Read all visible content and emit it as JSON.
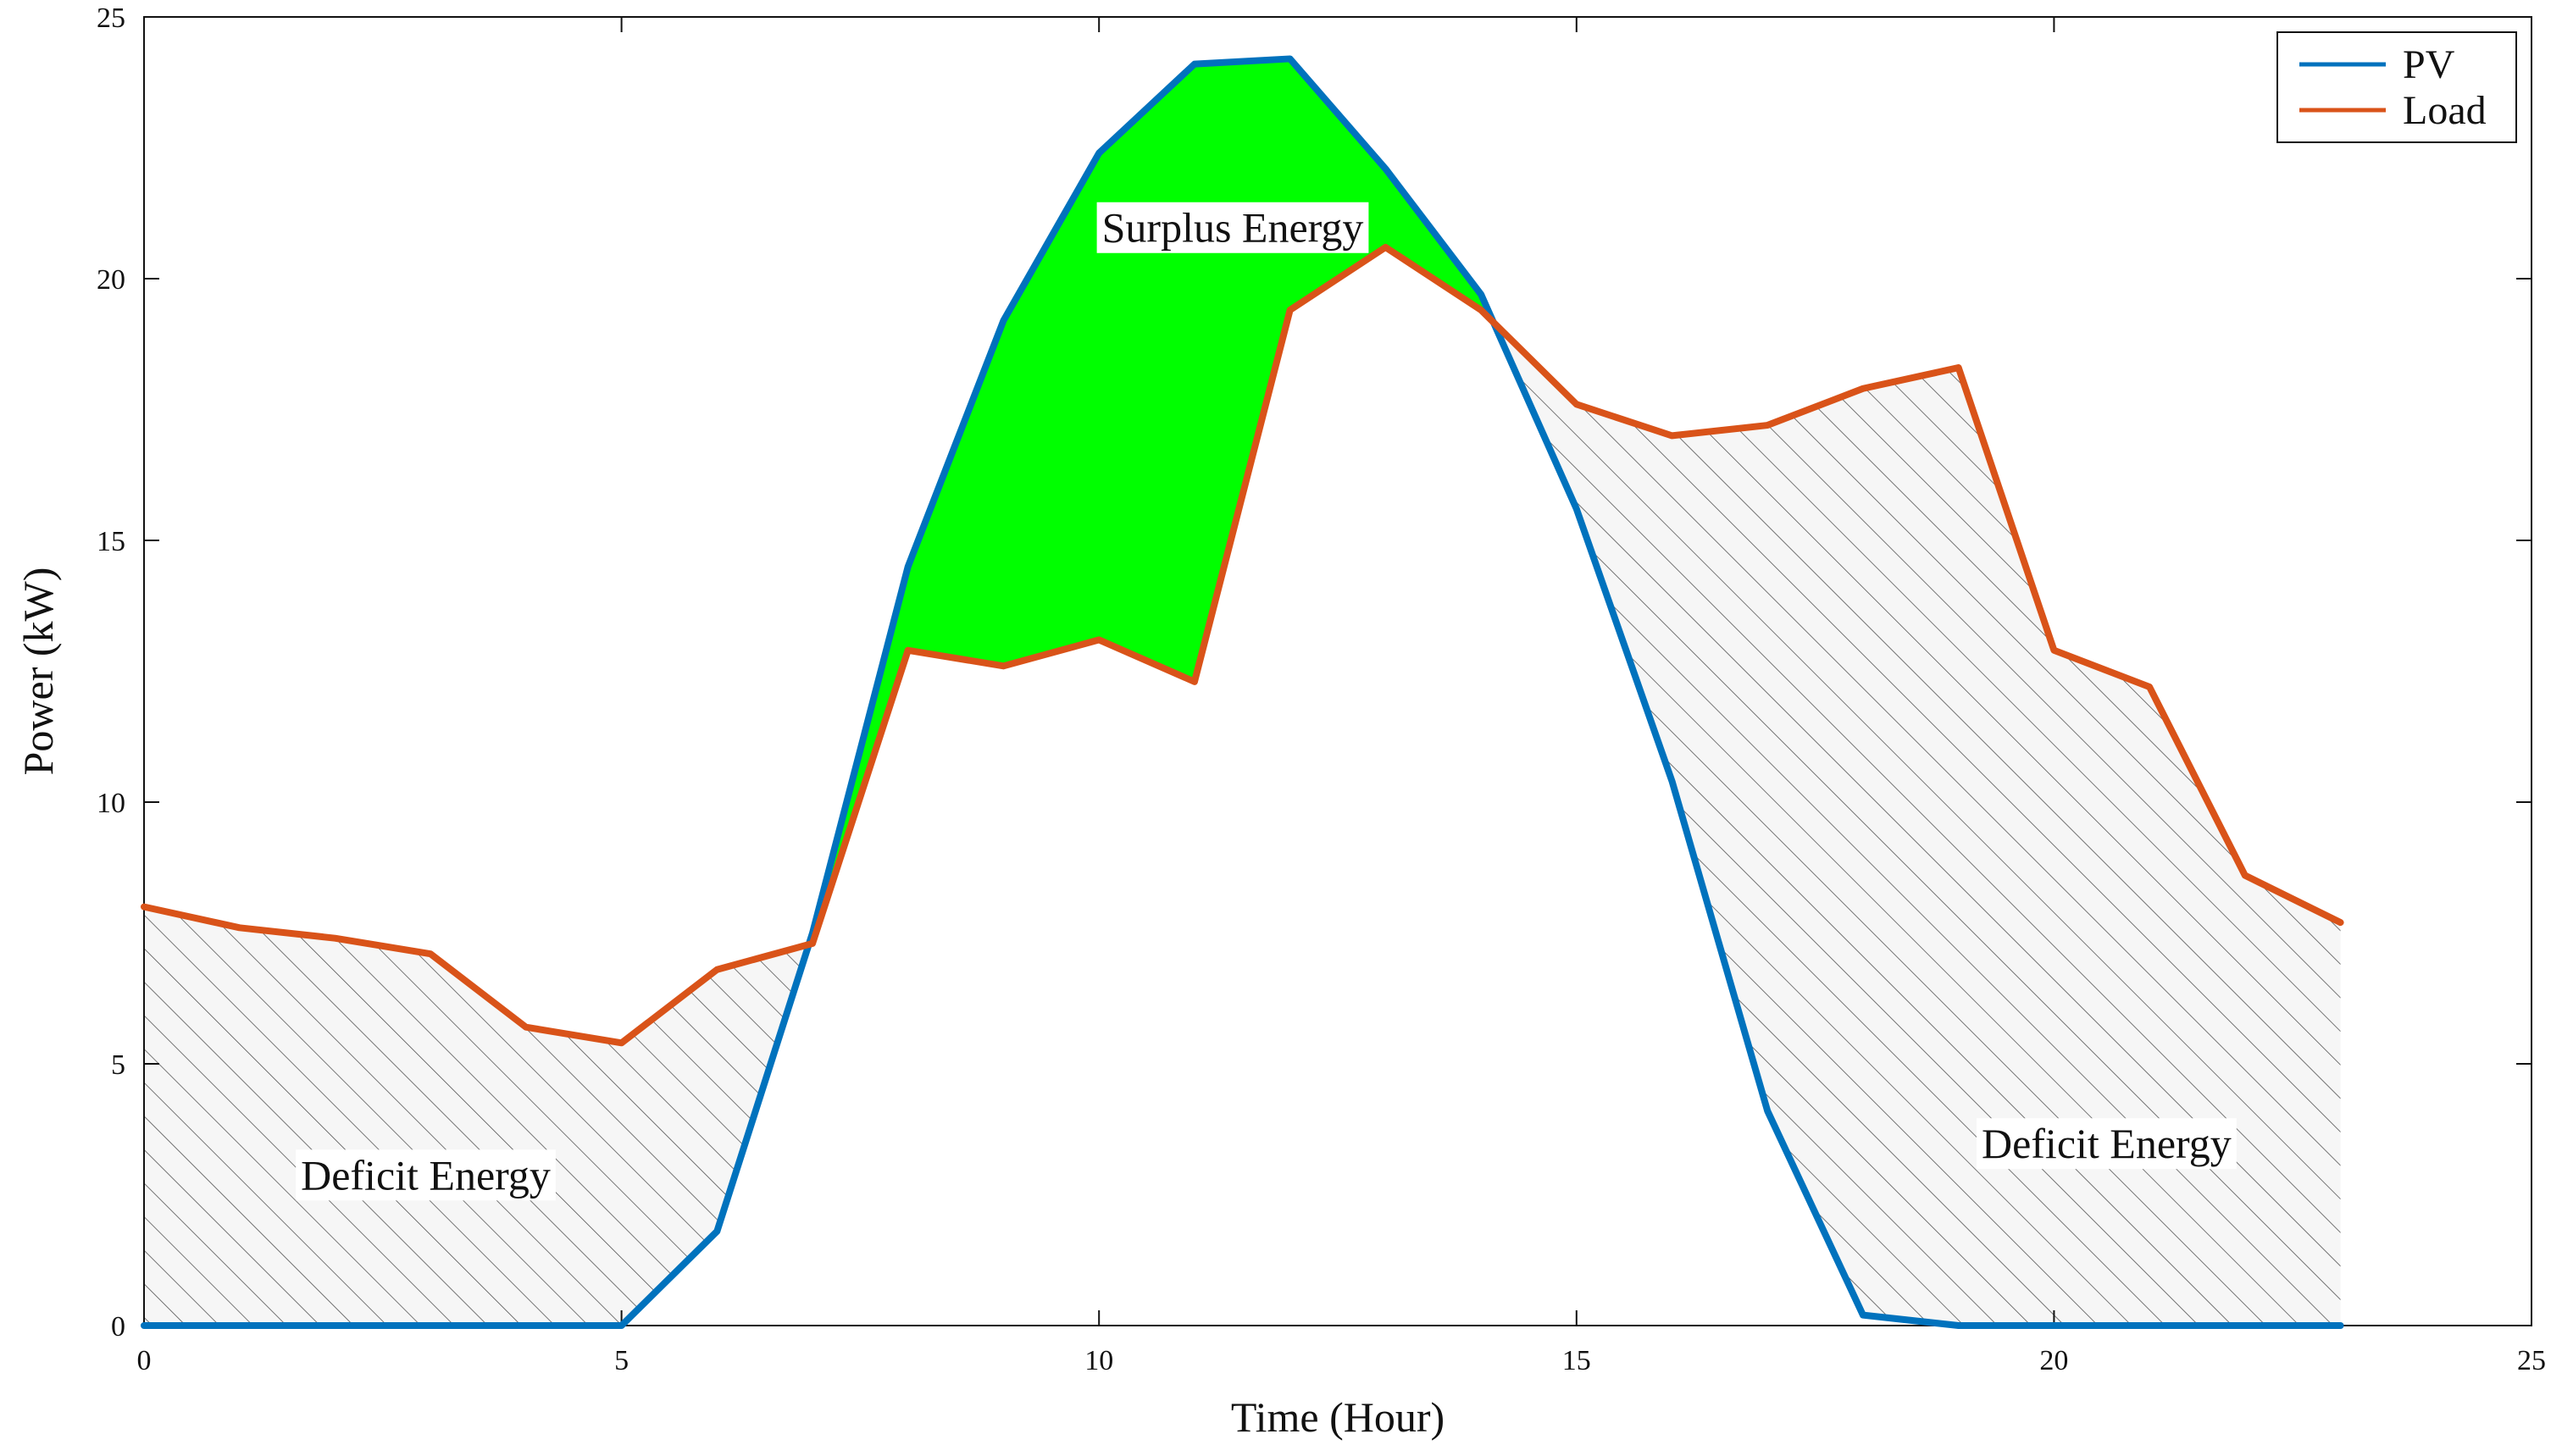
{
  "chart_data": {
    "type": "line",
    "title": "",
    "xlabel": "Time (Hour)",
    "ylabel": "Power (kW)",
    "xlim": [
      0,
      25
    ],
    "ylim": [
      0,
      25
    ],
    "x_ticks": [
      0,
      5,
      10,
      15,
      20,
      25
    ],
    "y_ticks": [
      0,
      5,
      10,
      15,
      20,
      25
    ],
    "grid": false,
    "legend_position": "top-right",
    "x": [
      0,
      1,
      2,
      3,
      4,
      5,
      6,
      7,
      8,
      9,
      10,
      11,
      12,
      13,
      14,
      15,
      16,
      17,
      18,
      19,
      20,
      21,
      22,
      23
    ],
    "series": [
      {
        "name": "PV",
        "color": "#0072BD",
        "values": [
          0,
          0,
          0,
          0,
          0,
          0,
          1.8,
          7.5,
          14.5,
          19.2,
          22.4,
          24.1,
          24.2,
          22.1,
          19.7,
          15.6,
          10.4,
          4.1,
          0.2,
          0,
          0,
          0,
          0,
          0
        ]
      },
      {
        "name": "Load",
        "color": "#D95319",
        "values": [
          8.0,
          7.6,
          7.4,
          7.1,
          5.7,
          5.4,
          6.8,
          7.3,
          12.9,
          12.6,
          13.1,
          12.3,
          19.4,
          20.6,
          19.4,
          17.6,
          17.0,
          17.2,
          17.9,
          18.3,
          12.9,
          12.2,
          8.6,
          7.7
        ]
      }
    ],
    "annotations": {
      "surplus": "Surplus Energy",
      "deficit_left": "Deficit Energy",
      "deficit_right": "Deficit Energy"
    },
    "colors": {
      "surplus_fill": "#00ff00",
      "hatch": "#555555",
      "deficit_bg": "#f6f6f6"
    }
  }
}
